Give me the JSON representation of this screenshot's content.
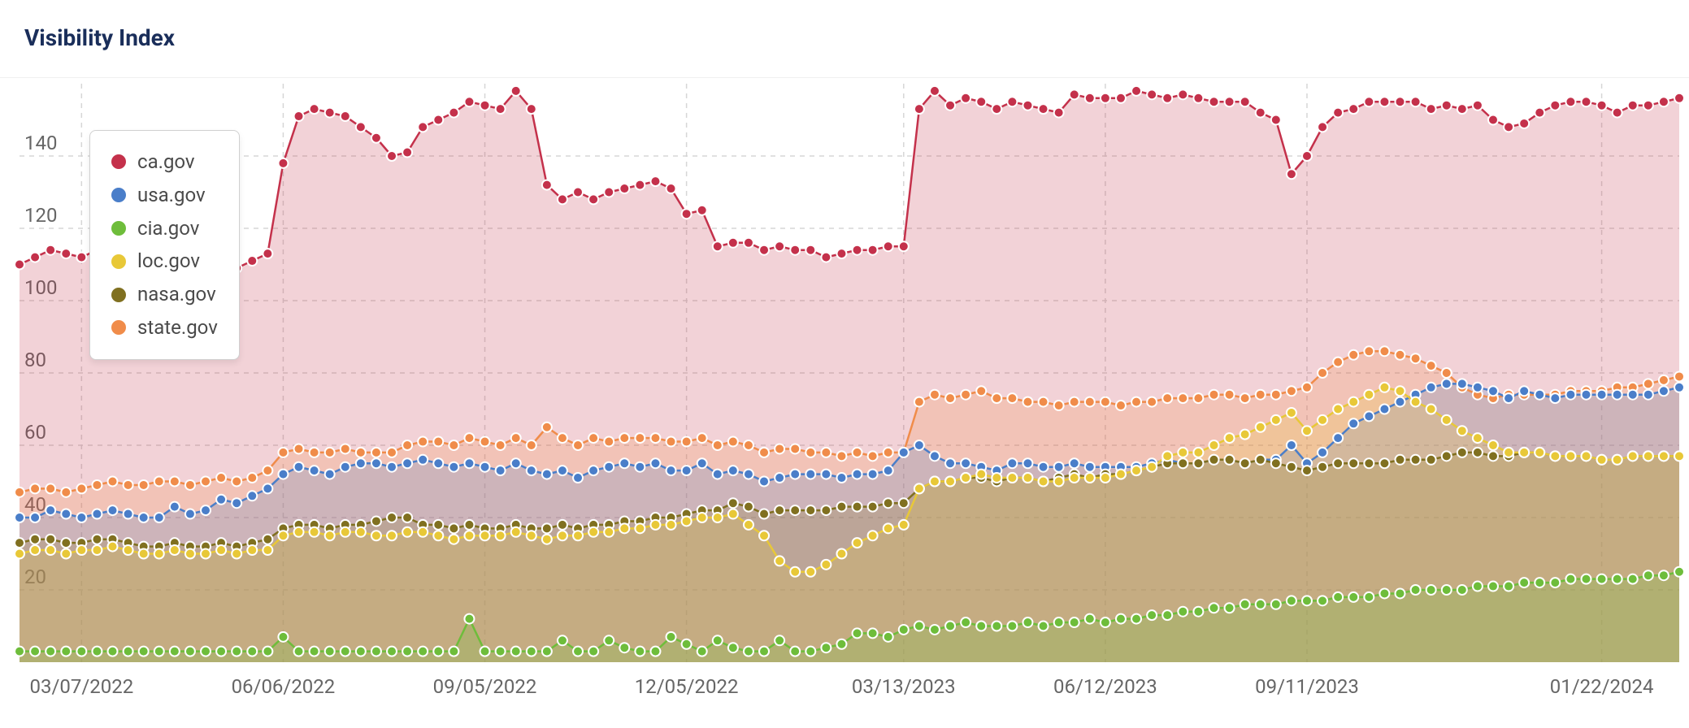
{
  "title": "Visibility Index",
  "chart": {
    "type": "line-area",
    "background_color": "#ffffff",
    "grid_color": "#d6d6d6",
    "grid_dash": "6 6",
    "axis_text_color": "#666666",
    "axis_fontsize": 24,
    "title_color": "#1a2e5a",
    "title_fontsize": 28,
    "ylim": [
      0,
      160
    ],
    "yticks": [
      20,
      40,
      60,
      80,
      100,
      120,
      140
    ],
    "xticks": [
      "03/07/2022",
      "06/06/2022",
      "09/05/2022",
      "12/05/2022",
      "03/13/2023",
      "06/12/2023",
      "09/11/2023",
      "01/22/2024"
    ],
    "xtick_indices": [
      4,
      17,
      30,
      43,
      57,
      70,
      83,
      102
    ],
    "n_points": 108,
    "marker_radius": 6,
    "marker_stroke": "#ffffff",
    "marker_stroke_width": 2,
    "line_width": 2.5,
    "fill_opacity": 0.22,
    "series": [
      {
        "name": "ca.gov",
        "color": "#c4314b",
        "values": [
          110,
          112,
          114,
          113,
          112,
          114,
          115,
          113,
          110,
          107,
          108,
          106,
          107,
          110,
          109,
          111,
          113,
          138,
          151,
          153,
          152,
          151,
          148,
          145,
          140,
          141,
          148,
          150,
          152,
          155,
          154,
          153,
          158,
          153,
          132,
          128,
          130,
          128,
          130,
          131,
          132,
          133,
          131,
          124,
          125,
          115,
          116,
          116,
          114,
          115,
          114,
          114,
          112,
          113,
          114,
          114,
          115,
          115,
          153,
          158,
          154,
          156,
          155,
          153,
          155,
          154,
          153,
          152,
          157,
          156,
          156,
          156,
          158,
          157,
          156,
          157,
          156,
          155,
          155,
          155,
          152,
          150,
          135,
          140,
          148,
          152,
          153,
          155,
          155,
          155,
          155,
          153,
          154,
          153,
          154,
          150,
          148,
          149,
          152,
          154,
          155,
          155,
          154,
          152,
          154,
          154,
          155,
          156
        ]
      },
      {
        "name": "state.gov",
        "color": "#f08c4a",
        "values": [
          47,
          48,
          48,
          47,
          48,
          49,
          50,
          49,
          49,
          50,
          50,
          49,
          50,
          51,
          50,
          51,
          53,
          58,
          59,
          58,
          58,
          59,
          58,
          58,
          58,
          60,
          61,
          61,
          60,
          62,
          61,
          60,
          62,
          60,
          65,
          62,
          60,
          62,
          61,
          62,
          62,
          62,
          61,
          61,
          62,
          60,
          61,
          60,
          58,
          59,
          59,
          58,
          58,
          57,
          58,
          57,
          58,
          58,
          72,
          74,
          73,
          74,
          75,
          73,
          73,
          72,
          72,
          71,
          72,
          72,
          72,
          71,
          72,
          72,
          73,
          73,
          73,
          74,
          74,
          73,
          74,
          74,
          75,
          76,
          80,
          83,
          85,
          86,
          86,
          85,
          84,
          82,
          80,
          76,
          74,
          73,
          74,
          74,
          74,
          74,
          75,
          75,
          75,
          76,
          76,
          77,
          78,
          79
        ]
      },
      {
        "name": "usa.gov",
        "color": "#4a7ec9",
        "values": [
          40,
          40,
          42,
          41,
          40,
          41,
          42,
          41,
          40,
          40,
          43,
          41,
          42,
          45,
          44,
          46,
          48,
          52,
          54,
          53,
          52,
          54,
          55,
          55,
          54,
          55,
          56,
          55,
          54,
          55,
          54,
          53,
          55,
          53,
          52,
          53,
          51,
          53,
          54,
          55,
          54,
          55,
          53,
          53,
          55,
          52,
          53,
          52,
          50,
          51,
          52,
          52,
          52,
          51,
          52,
          52,
          53,
          58,
          60,
          57,
          55,
          55,
          54,
          53,
          55,
          55,
          54,
          54,
          55,
          54,
          54,
          54,
          54,
          55,
          56,
          55,
          55,
          56,
          56,
          55,
          56,
          56,
          60,
          55,
          58,
          62,
          66,
          68,
          70,
          72,
          74,
          76,
          77,
          77,
          76,
          75,
          73,
          75,
          74,
          73,
          74,
          74,
          74,
          74,
          74,
          74,
          75,
          76
        ]
      },
      {
        "name": "nasa.gov",
        "color": "#807020",
        "values": [
          33,
          34,
          34,
          33,
          33,
          34,
          34,
          33,
          32,
          32,
          33,
          32,
          32,
          33,
          32,
          33,
          34,
          37,
          38,
          38,
          37,
          38,
          38,
          39,
          40,
          40,
          38,
          38,
          37,
          38,
          37,
          37,
          38,
          37,
          37,
          38,
          37,
          38,
          38,
          39,
          39,
          40,
          40,
          41,
          42,
          42,
          44,
          43,
          41,
          42,
          42,
          42,
          42,
          43,
          43,
          43,
          44,
          44,
          48,
          50,
          50,
          51,
          51,
          50,
          51,
          51,
          50,
          51,
          52,
          51,
          52,
          52,
          53,
          54,
          55,
          55,
          55,
          56,
          56,
          55,
          56,
          55,
          54,
          53,
          54,
          55,
          55,
          55,
          55,
          56,
          56,
          56,
          57,
          58,
          58,
          57,
          57,
          58,
          58,
          57,
          57,
          57,
          56,
          56,
          57,
          57,
          57,
          57
        ]
      },
      {
        "name": "loc.gov",
        "color": "#e8c838",
        "values": [
          30,
          31,
          31,
          30,
          31,
          31,
          32,
          31,
          30,
          30,
          31,
          30,
          30,
          31,
          30,
          31,
          31,
          35,
          36,
          36,
          35,
          36,
          36,
          35,
          35,
          36,
          36,
          35,
          34,
          35,
          35,
          35,
          36,
          35,
          34,
          35,
          35,
          36,
          36,
          37,
          37,
          38,
          38,
          39,
          40,
          40,
          41,
          38,
          35,
          28,
          25,
          25,
          27,
          30,
          33,
          35,
          37,
          38,
          48,
          50,
          50,
          51,
          52,
          51,
          51,
          51,
          50,
          50,
          51,
          51,
          51,
          52,
          53,
          54,
          57,
          58,
          58,
          60,
          62,
          63,
          65,
          67,
          69,
          64,
          67,
          70,
          72,
          74,
          76,
          75,
          72,
          70,
          67,
          64,
          62,
          60,
          58,
          58,
          58,
          57,
          57,
          57,
          56,
          56,
          57,
          57,
          57,
          57
        ]
      },
      {
        "name": "cia.gov",
        "color": "#6ebd3b",
        "values": [
          3,
          3,
          3,
          3,
          3,
          3,
          3,
          3,
          3,
          3,
          3,
          3,
          3,
          3,
          3,
          3,
          3,
          7,
          3,
          3,
          3,
          3,
          3,
          3,
          3,
          3,
          3,
          3,
          3,
          12,
          3,
          3,
          3,
          3,
          3,
          6,
          3,
          3,
          6,
          4,
          3,
          3,
          7,
          5,
          3,
          6,
          4,
          3,
          3,
          6,
          3,
          3,
          4,
          5,
          8,
          8,
          7,
          9,
          10,
          9,
          10,
          11,
          10,
          10,
          10,
          11,
          10,
          11,
          11,
          12,
          11,
          12,
          12,
          13,
          13,
          14,
          14,
          15,
          15,
          16,
          16,
          16,
          17,
          17,
          17,
          18,
          18,
          18,
          19,
          19,
          20,
          20,
          20,
          20,
          21,
          21,
          21,
          22,
          22,
          22,
          23,
          23,
          23,
          23,
          23,
          24,
          24,
          25
        ]
      }
    ],
    "legend": {
      "position": "top-left",
      "items": [
        {
          "label": "ca.gov",
          "color": "#c4314b"
        },
        {
          "label": "usa.gov",
          "color": "#4a7ec9"
        },
        {
          "label": "cia.gov",
          "color": "#6ebd3b"
        },
        {
          "label": "loc.gov",
          "color": "#e8c838"
        },
        {
          "label": "nasa.gov",
          "color": "#807020"
        },
        {
          "label": "state.gov",
          "color": "#f08c4a"
        }
      ]
    }
  }
}
